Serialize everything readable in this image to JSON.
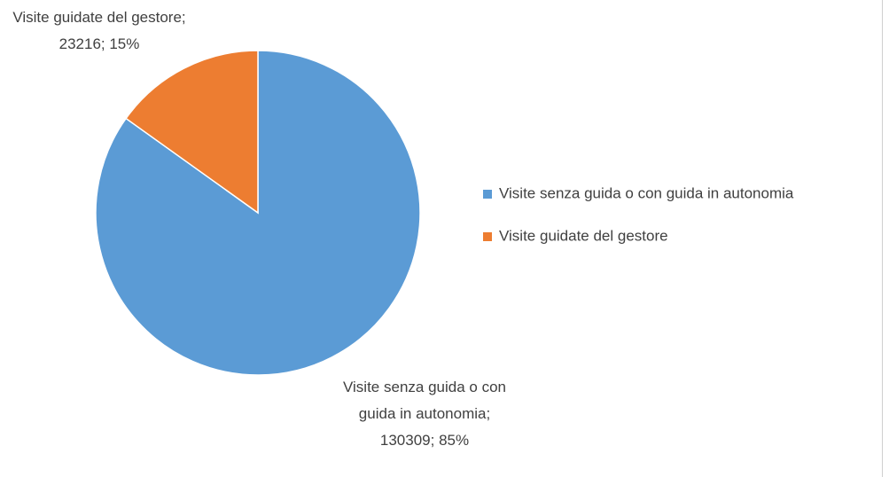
{
  "chart_data": {
    "type": "pie",
    "categories": [
      "Visite senza guida o con guida in autonomia",
      "Visite guidate del gestore"
    ],
    "values": [
      130309,
      23216
    ],
    "value_labels": [
      "Visite senza guida o con guida in autonomia; 130309; 85%",
      "Visite guidate del gestore; 23216; 15%"
    ],
    "colors": [
      "#5b9bd5",
      "#ed7d31"
    ],
    "legend": "right"
  }
}
